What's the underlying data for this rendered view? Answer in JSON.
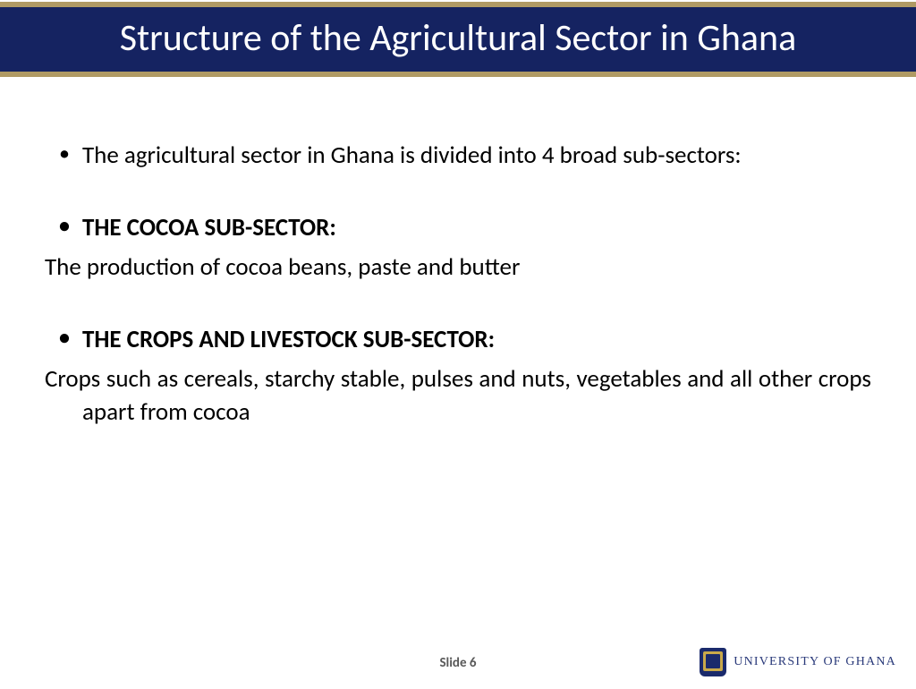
{
  "title": "Structure of the Agricultural Sector in Ghana",
  "body": {
    "intro": "The agricultural sector in Ghana is divided into 4 broad sub-sectors:",
    "sec1_head": "THE COCOA SUB-SECTOR:",
    "sec1_body": "The production of cocoa beans, paste and butter",
    "sec2_head": "THE CROPS AND LIVESTOCK SUB-SECTOR:",
    "sec2_body": "Crops such as cereals, starchy stable, pulses and nuts, vegetables and all other crops apart from cocoa"
  },
  "slide_label": "Slide 6",
  "footer_institution": "UNIVERSITY OF GHANA",
  "colors": {
    "band_bg": "#152361",
    "band_border": "#b09a64",
    "title_text": "#ffffff",
    "body_text": "#000000",
    "slide_num_text": "#595959",
    "logo_text": "#2a3a7a"
  },
  "fonts": {
    "title_size_pt": 32,
    "body_size_pt": 20,
    "slidenum_size_pt": 11
  }
}
